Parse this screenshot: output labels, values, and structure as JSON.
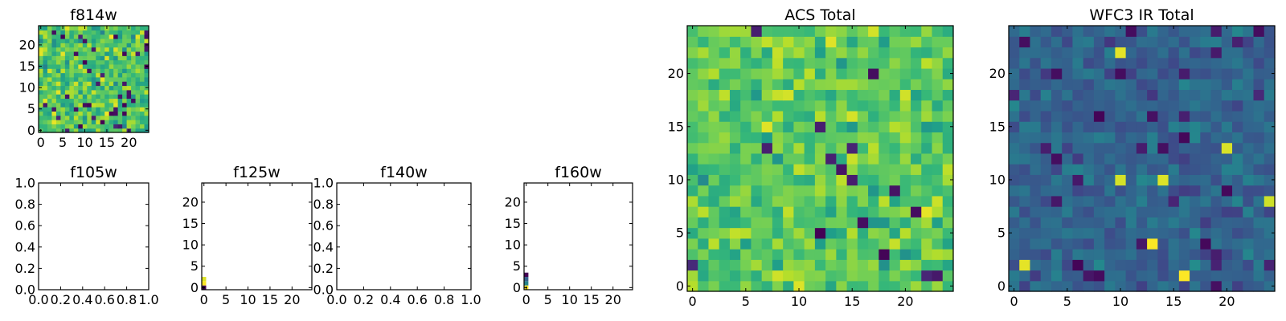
{
  "chart_data": [
    {
      "id": "f814w",
      "type": "heatmap",
      "title": "f814w",
      "colormap": "viridis",
      "grid_size": 25,
      "xlim": [
        -0.5,
        24.5
      ],
      "ylim": [
        -0.5,
        24.5
      ],
      "xticks": [
        0,
        5,
        10,
        15,
        20
      ],
      "yticks": [
        0,
        5,
        10,
        15,
        20
      ],
      "xticklabels": [
        "0",
        "5",
        "10",
        "15",
        "20"
      ],
      "yticklabels": [
        "0",
        "5",
        "10",
        "15",
        "20"
      ],
      "value_distribution": "mostly high (green-yellow) with scattered dark cells",
      "seed": 17,
      "mean": 0.72,
      "spread": 0.22,
      "dark_prob": 0.07
    },
    {
      "id": "f105w",
      "type": "heatmap",
      "title": "f105w",
      "empty": true,
      "xlim": [
        0,
        1
      ],
      "ylim": [
        0,
        1
      ],
      "xticks": [
        0,
        0.2,
        0.4,
        0.6,
        0.8,
        1.0
      ],
      "yticks": [
        0,
        0.2,
        0.4,
        0.6,
        0.8,
        1.0
      ],
      "xticklabels": [
        "0.0",
        "0.2",
        "0.4",
        "0.6",
        "0.8",
        "1.0"
      ],
      "yticklabels": [
        "0.0",
        "0.2",
        "0.4",
        "0.6",
        "0.8",
        "1.0"
      ]
    },
    {
      "id": "f125w",
      "type": "heatmap",
      "title": "f125w",
      "xlim": [
        -0.5,
        24.5
      ],
      "ylim": [
        -0.5,
        24.5
      ],
      "xticks": [
        0,
        5,
        10,
        15,
        20
      ],
      "yticks": [
        0,
        5,
        10,
        15,
        20
      ],
      "xticklabels": [
        "0",
        "5",
        "10",
        "15",
        "20"
      ],
      "yticklabels": [
        "0",
        "5",
        "10",
        "15",
        "20"
      ],
      "cells": [
        {
          "x": 0,
          "y": 0,
          "value": 0.0
        },
        {
          "x": 0,
          "y": 1,
          "value": 1.0
        },
        {
          "x": 0,
          "y": 2,
          "value": 0.95
        }
      ]
    },
    {
      "id": "f140w",
      "type": "heatmap",
      "title": "f140w",
      "empty": true,
      "xlim": [
        0,
        1
      ],
      "ylim": [
        0,
        1
      ],
      "xticks": [
        0,
        0.2,
        0.4,
        0.6,
        0.8,
        1.0
      ],
      "yticks": [
        0,
        0.2,
        0.4,
        0.6,
        0.8,
        1.0
      ],
      "xticklabels": [
        "0.0",
        "0.2",
        "0.4",
        "0.6",
        "0.8",
        "1.0"
      ],
      "yticklabels": [
        "0.0",
        "0.2",
        "0.4",
        "0.6",
        "0.8",
        "1.0"
      ]
    },
    {
      "id": "f160w",
      "type": "heatmap",
      "title": "f160w",
      "xlim": [
        -0.5,
        24.5
      ],
      "ylim": [
        -0.5,
        24.5
      ],
      "xticks": [
        0,
        5,
        10,
        15,
        20
      ],
      "yticks": [
        0,
        5,
        10,
        15,
        20
      ],
      "xticklabels": [
        "0",
        "5",
        "10",
        "15",
        "20"
      ],
      "yticklabels": [
        "0",
        "5",
        "10",
        "15",
        "20"
      ],
      "cells": [
        {
          "x": 0,
          "y": 0,
          "value": 1.0
        },
        {
          "x": 0,
          "y": 1,
          "value": 0.45
        },
        {
          "x": 0,
          "y": 2,
          "value": 0.3
        },
        {
          "x": 0,
          "y": 3,
          "value": 0.0
        }
      ]
    },
    {
      "id": "acs-total",
      "type": "heatmap",
      "title": "ACS Total",
      "colormap": "viridis",
      "grid_size": 25,
      "xlim": [
        -0.5,
        24.5
      ],
      "ylim": [
        -0.5,
        24.5
      ],
      "xticks": [
        0,
        5,
        10,
        15,
        20
      ],
      "yticks": [
        0,
        5,
        10,
        15,
        20
      ],
      "xticklabels": [
        "0",
        "5",
        "10",
        "15",
        "20"
      ],
      "yticklabels": [
        "0",
        "5",
        "10",
        "15",
        "20"
      ],
      "value_distribution": "mostly high (green-yellow) with few dark cells",
      "seed": 29,
      "mean": 0.74,
      "spread": 0.18,
      "dark_prob": 0.03
    },
    {
      "id": "wfc3-ir-total",
      "type": "heatmap",
      "title": "WFC3 IR Total",
      "colormap": "viridis",
      "grid_size": 25,
      "xlim": [
        -0.5,
        24.5
      ],
      "ylim": [
        -0.5,
        24.5
      ],
      "xticks": [
        0,
        5,
        10,
        15,
        20
      ],
      "yticks": [
        0,
        5,
        10,
        15,
        20
      ],
      "xticklabels": [
        "0",
        "5",
        "10",
        "15",
        "20"
      ],
      "yticklabels": [
        "0",
        "5",
        "10",
        "15",
        "20"
      ],
      "value_distribution": "mostly low-mid (blue-teal) with scattered yellow and dark cells",
      "seed": 41,
      "mean": 0.32,
      "spread": 0.12,
      "dark_prob": 0.05,
      "bright_prob": 0.02
    }
  ],
  "colors": {
    "viridis": [
      "#440154",
      "#482878",
      "#3e4989",
      "#31688e",
      "#26828e",
      "#1f9e89",
      "#35b779",
      "#6ece58",
      "#b5de2b",
      "#fde725"
    ]
  }
}
